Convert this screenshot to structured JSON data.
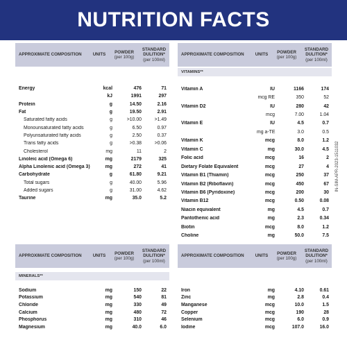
{
  "title": "NUTRITION FACTS",
  "header": {
    "composition": "APPROXIMATE COMPOSITION",
    "units": "UNITS",
    "powder": "POWDER",
    "powder_sub": "(per 100g)",
    "dilution": "STANDARD DULITION*",
    "dilution_sub": "(per 100ml)"
  },
  "vitamins_label": "VITAMINS**",
  "minerals_label": "MINERALS**",
  "side_code": "IN-SIM-APR-2023-1511032",
  "left_top_rows": [
    {
      "name": "Energy",
      "unit": "kcal",
      "powder": "476",
      "dilution": "71",
      "bold": true
    },
    {
      "name": "",
      "unit": "kJ",
      "powder": "1991",
      "dilution": "297",
      "bold": true
    },
    {
      "name": "Protein",
      "unit": "g",
      "powder": "14.50",
      "dilution": "2.16",
      "bold": true
    },
    {
      "name": "Fat",
      "unit": "g",
      "powder": "19.50",
      "dilution": "2.91",
      "bold": true
    },
    {
      "name": "Saturated fatty acids",
      "unit": "g",
      "powder": ">10.00",
      "dilution": ">1.49",
      "bold": false
    },
    {
      "name": "Monounsaturated fatty acids",
      "unit": "g",
      "powder": "6.50",
      "dilution": "0.97",
      "bold": false
    },
    {
      "name": "Polyunsaturated fatty acids",
      "unit": "g",
      "powder": "2.50",
      "dilution": "0.37",
      "bold": false
    },
    {
      "name": "Trans fatty acids",
      "unit": "g",
      "powder": ">0.38",
      "dilution": ">0.06",
      "bold": false
    },
    {
      "name": "Cholesterol",
      "unit": "mg",
      "powder": "11",
      "dilution": "2",
      "bold": false
    },
    {
      "name": "Linoleic acid (Omega 6)",
      "unit": "mg",
      "powder": "2179",
      "dilution": "325",
      "bold": true
    },
    {
      "name": "Alpha Linolenic acid (Omega 3)",
      "unit": "mg",
      "powder": "272",
      "dilution": "41",
      "bold": true
    },
    {
      "name": "Carbohydrate",
      "unit": "g",
      "powder": "61.80",
      "dilution": "9.21",
      "bold": true
    },
    {
      "name": "Total sugars",
      "unit": "g",
      "powder": "40.00",
      "dilution": "5.96",
      "bold": false
    },
    {
      "name": "Added sugars",
      "unit": "g",
      "powder": "31.00",
      "dilution": "4.62",
      "bold": false
    },
    {
      "name": "Taurine",
      "unit": "mg",
      "powder": "35.0",
      "dilution": "5.2",
      "bold": true
    }
  ],
  "right_top_rows": [
    {
      "name": "Vitamin A",
      "unit": "IU",
      "powder": "1166",
      "dilution": "174",
      "bold": true
    },
    {
      "name": "",
      "unit": "mcg RE",
      "powder": "350",
      "dilution": "52",
      "bold": false
    },
    {
      "name": "Vitamin D2",
      "unit": "IU",
      "powder": "280",
      "dilution": "42",
      "bold": true
    },
    {
      "name": "",
      "unit": "mcg",
      "powder": "7.00",
      "dilution": "1.04",
      "bold": false
    },
    {
      "name": "Vitamin E",
      "unit": "IU",
      "powder": "4.5",
      "dilution": "0.7",
      "bold": true
    },
    {
      "name": "",
      "unit": "mg a-TE",
      "powder": "3.0",
      "dilution": "0.5",
      "bold": false
    },
    {
      "name": "Vitamin K",
      "unit": "mcg",
      "powder": "8.0",
      "dilution": "1.2",
      "bold": true
    },
    {
      "name": "Vitamin C",
      "unit": "mg",
      "powder": "30.0",
      "dilution": "4.5",
      "bold": true
    },
    {
      "name": "Folic acid",
      "unit": "mcg",
      "powder": "16",
      "dilution": "2",
      "bold": true
    },
    {
      "name": "Dietary Folate Equivalent",
      "unit": "mcg",
      "powder": "27",
      "dilution": "4",
      "bold": true
    },
    {
      "name": "Vitamin B1 (Thiamin)",
      "unit": "mcg",
      "powder": "250",
      "dilution": "37",
      "bold": true
    },
    {
      "name": "Vitamin B2 (Riboflavin)",
      "unit": "mcg",
      "powder": "450",
      "dilution": "67",
      "bold": true
    },
    {
      "name": "Vitamin B6 (Pyridoxine)",
      "unit": "mcg",
      "powder": "200",
      "dilution": "30",
      "bold": true
    },
    {
      "name": "Vitamin B12",
      "unit": "mcg",
      "powder": "0.50",
      "dilution": "0.08",
      "bold": true
    },
    {
      "name": "Niacin equivalent",
      "unit": "mg",
      "powder": "4.5",
      "dilution": "0.7",
      "bold": true
    },
    {
      "name": "Pantothenic acid",
      "unit": "mg",
      "powder": "2.3",
      "dilution": "0.34",
      "bold": true
    },
    {
      "name": "Biotin",
      "unit": "mcg",
      "powder": "8.0",
      "dilution": "1.2",
      "bold": true
    },
    {
      "name": "Choline",
      "unit": "mg",
      "powder": "50.0",
      "dilution": "7.5",
      "bold": true
    }
  ],
  "left_bottom_rows": [
    {
      "name": "Sodium",
      "unit": "mg",
      "powder": "150",
      "dilution": "22",
      "bold": true
    },
    {
      "name": "Potassium",
      "unit": "mg",
      "powder": "540",
      "dilution": "81",
      "bold": true
    },
    {
      "name": "Chloride",
      "unit": "mg",
      "powder": "330",
      "dilution": "49",
      "bold": true
    },
    {
      "name": "Calcium",
      "unit": "mg",
      "powder": "480",
      "dilution": "72",
      "bold": true
    },
    {
      "name": "Phosphorus",
      "unit": "mg",
      "powder": "310",
      "dilution": "46",
      "bold": true
    },
    {
      "name": "Magnesium",
      "unit": "mg",
      "powder": "40.0",
      "dilution": "6.0",
      "bold": true
    }
  ],
  "right_bottom_rows": [
    {
      "name": "Iron",
      "unit": "mg",
      "powder": "4.10",
      "dilution": "0.61",
      "bold": true
    },
    {
      "name": "Zinc",
      "unit": "mg",
      "powder": "2.8",
      "dilution": "0.4",
      "bold": true
    },
    {
      "name": "Manganese",
      "unit": "mcg",
      "powder": "10.0",
      "dilution": "1.5",
      "bold": true
    },
    {
      "name": "Copper",
      "unit": "mcg",
      "powder": "190",
      "dilution": "28",
      "bold": true
    },
    {
      "name": "Selenium",
      "unit": "mcg",
      "powder": "6.0",
      "dilution": "0.9",
      "bold": true
    },
    {
      "name": "Iodine",
      "unit": "mcg",
      "powder": "107.0",
      "dilution": "16.0",
      "bold": true
    }
  ]
}
